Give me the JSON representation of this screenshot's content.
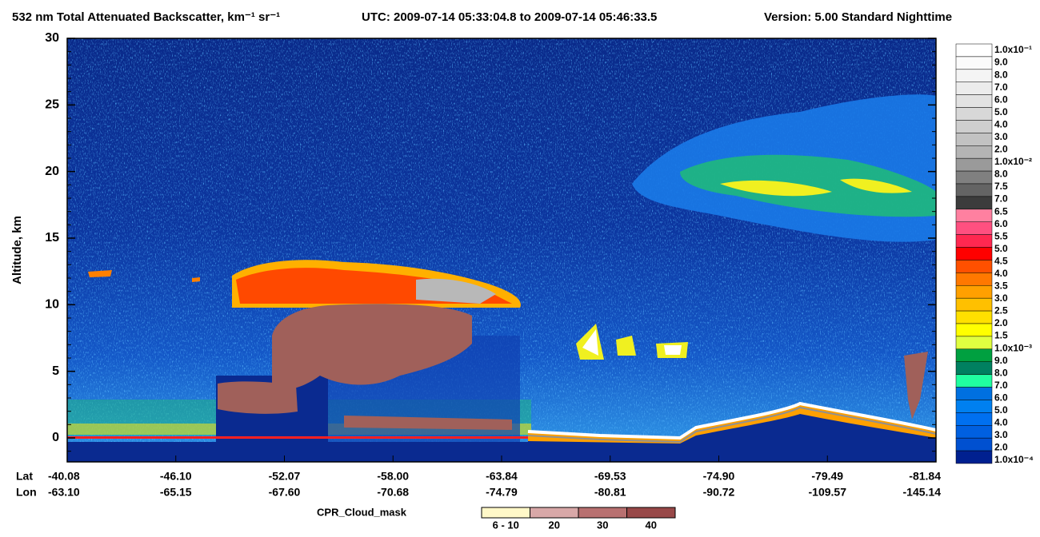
{
  "chart_data": {
    "type": "heatmap",
    "title": "532 nm Total Attenuated Backscatter, km⁻¹ sr⁻¹",
    "subtitle": "UTC:  2009-07-14 05:33:04.8  to  2009-07-14 05:46:33.5",
    "version": "Version: 5.00  Standard  Nighttime",
    "y_label": "Altitude, km",
    "ylim": [
      -1.8,
      30
    ],
    "yticks": [
      0,
      5,
      10,
      15,
      20,
      25,
      30
    ],
    "x_row_labels": [
      "Lat",
      "Lon"
    ],
    "lat": [
      "-40.08",
      "-46.10",
      "-52.07",
      "-58.00",
      "-63.84",
      "-69.53",
      "-74.90",
      "-79.49",
      "-81.84"
    ],
    "lon": [
      "-63.10",
      "-65.15",
      "-67.60",
      "-70.68",
      "-74.79",
      "-80.81",
      "-90.72",
      "-109.57",
      "-145.14"
    ],
    "colorbar": {
      "labels": [
        "1.0x10⁻¹",
        "9.0",
        "8.0",
        "7.0",
        "6.0",
        "5.0",
        "4.0",
        "3.0",
        "2.0",
        "1.0x10⁻²",
        "8.0",
        "7.5",
        "7.0",
        "6.5",
        "6.0",
        "5.5",
        "5.0",
        "4.5",
        "4.0",
        "3.5",
        "3.0",
        "2.5",
        "2.0",
        "1.5",
        "1.0x10⁻³",
        "9.0",
        "8.0",
        "7.0",
        "6.0",
        "5.0",
        "4.0",
        "3.0",
        "2.0",
        "1.0x10⁻⁴"
      ],
      "colors": [
        "#ffffff",
        "#fbfbfb",
        "#f4f4f4",
        "#ececec",
        "#e2e2e2",
        "#d8d8d8",
        "#cecece",
        "#c2c2c2",
        "#b4b4b4",
        "#9a9a9a",
        "#808080",
        "#646464",
        "#3c3c3c",
        "#ff80a0",
        "#ff5080",
        "#ff2850",
        "#ff0000",
        "#ff5000",
        "#ff7800",
        "#ffa000",
        "#ffc000",
        "#ffe000",
        "#ffff00",
        "#e0ff40",
        "#00a040",
        "#008060",
        "#20ffa0",
        "#0070e0",
        "#0080f0",
        "#0070f0",
        "#0060e0",
        "#0050d0",
        "#002090"
      ]
    },
    "cloud_mask": {
      "label": "CPR_Cloud_mask",
      "bins": [
        "6 - 10",
        "20",
        "30",
        "40"
      ],
      "colors": [
        "#fff8c8",
        "#d8a8a8",
        "#b87070",
        "#984848"
      ]
    }
  }
}
